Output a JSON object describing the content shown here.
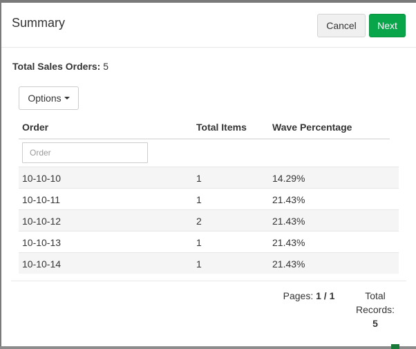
{
  "modal": {
    "title": "Summary",
    "cancel_label": "Cancel",
    "next_label": "Next"
  },
  "summary": {
    "total_label": "Total Sales Orders:",
    "total_value": "5"
  },
  "options": {
    "label": "Options"
  },
  "table": {
    "columns": [
      "Order",
      "Total Items",
      "Wave Percentage"
    ],
    "filter_placeholder": "Order",
    "rows": [
      [
        "10-10-10",
        "1",
        "14.29%"
      ],
      [
        "10-10-11",
        "1",
        "21.43%"
      ],
      [
        "10-10-12",
        "2",
        "21.43%"
      ],
      [
        "10-10-13",
        "1",
        "21.43%"
      ],
      [
        "10-10-14",
        "1",
        "21.43%"
      ]
    ]
  },
  "footer": {
    "pages_label": "Pages:",
    "pages_value": "1 / 1",
    "records_label": "Total Records:",
    "records_value": "5"
  }
}
